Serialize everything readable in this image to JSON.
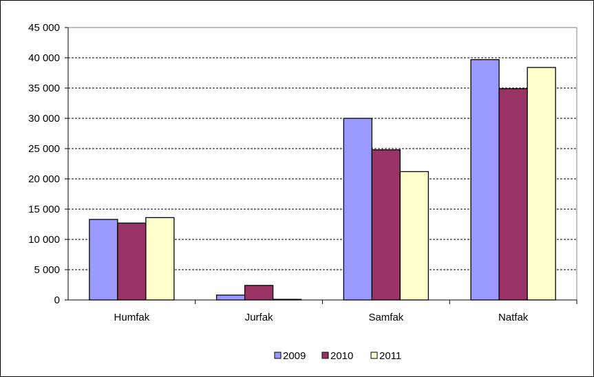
{
  "chart_data": {
    "type": "bar",
    "categories": [
      "Humfak",
      "Jurfak",
      "Samfak",
      "Natfak"
    ],
    "series": [
      {
        "name": "2009",
        "color": "#9999ff",
        "values": [
          13300,
          800,
          30000,
          39700
        ]
      },
      {
        "name": "2010",
        "color": "#993366",
        "values": [
          12700,
          2400,
          24800,
          34900
        ]
      },
      {
        "name": "2011",
        "color": "#ffffcc",
        "values": [
          13600,
          100,
          21200,
          38400
        ]
      }
    ],
    "yticks": [
      "0",
      "5 000",
      "10 000",
      "15 000",
      "20 000",
      "25 000",
      "30 000",
      "35 000",
      "40 000",
      "45 000"
    ],
    "ylim": [
      0,
      45000
    ],
    "ytick_step": 5000,
    "grid": "horizontal dashed",
    "legend_position": "bottom",
    "plot_background": "#ffffff"
  }
}
